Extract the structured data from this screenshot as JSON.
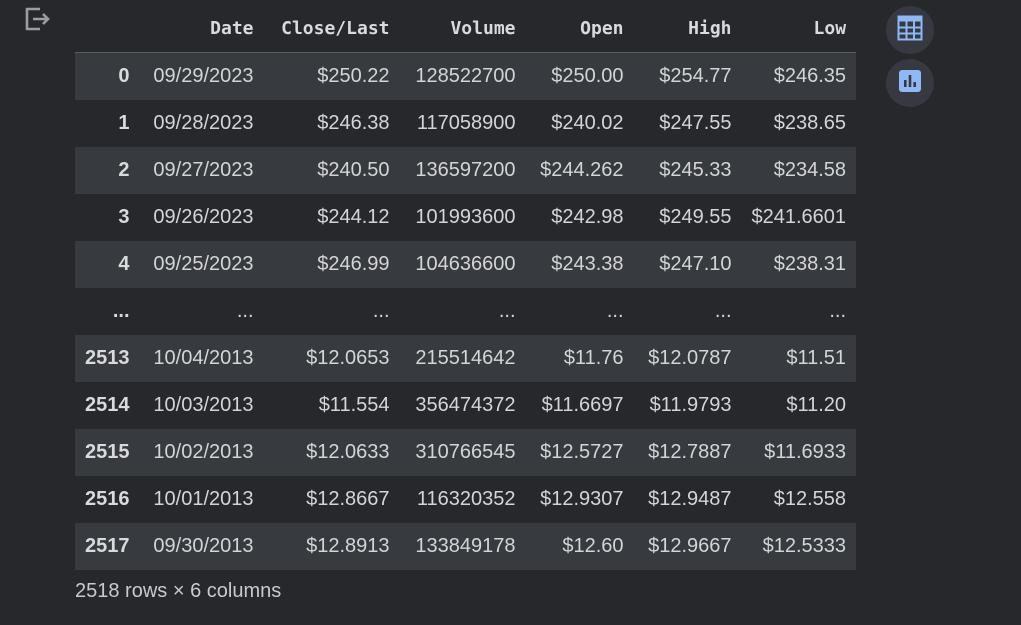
{
  "columns": [
    "Date",
    "Close/Last",
    "Volume",
    "Open",
    "High",
    "Low"
  ],
  "rows": [
    {
      "index": "0",
      "cells": [
        "09/29/2023",
        "$250.22",
        "128522700",
        "$250.00",
        "$254.77",
        "$246.35"
      ]
    },
    {
      "index": "1",
      "cells": [
        "09/28/2023",
        "$246.38",
        "117058900",
        "$240.02",
        "$247.55",
        "$238.65"
      ]
    },
    {
      "index": "2",
      "cells": [
        "09/27/2023",
        "$240.50",
        "136597200",
        "$244.262",
        "$245.33",
        "$234.58"
      ]
    },
    {
      "index": "3",
      "cells": [
        "09/26/2023",
        "$244.12",
        "101993600",
        "$242.98",
        "$249.55",
        "$241.6601"
      ]
    },
    {
      "index": "4",
      "cells": [
        "09/25/2023",
        "$246.99",
        "104636600",
        "$243.38",
        "$247.10",
        "$238.31"
      ]
    },
    {
      "index": "...",
      "cells": [
        "...",
        "...",
        "...",
        "...",
        "...",
        "..."
      ]
    },
    {
      "index": "2513",
      "cells": [
        "10/04/2013",
        "$12.0653",
        "215514642",
        "$11.76",
        "$12.0787",
        "$11.51"
      ]
    },
    {
      "index": "2514",
      "cells": [
        "10/03/2013",
        "$11.554",
        "356474372",
        "$11.6697",
        "$11.9793",
        "$11.20"
      ]
    },
    {
      "index": "2515",
      "cells": [
        "10/02/2013",
        "$12.0633",
        "310766545",
        "$12.5727",
        "$12.7887",
        "$11.6933"
      ]
    },
    {
      "index": "2516",
      "cells": [
        "10/01/2013",
        "$12.8667",
        "116320352",
        "$12.9307",
        "$12.9487",
        "$12.558"
      ]
    },
    {
      "index": "2517",
      "cells": [
        "09/30/2013",
        "$12.8913",
        "133849178",
        "$12.60",
        "$12.9667",
        "$12.5333"
      ]
    }
  ],
  "footer": {
    "shape_text": "2518 rows × 6 columns"
  },
  "icons": {
    "output": "output-exit-icon",
    "table_button": "table-grid-icon",
    "chart_button": "bar-chart-icon"
  },
  "colors": {
    "background": "#26282b",
    "stripe": "#373a3e",
    "button_bg": "#36393f",
    "icon_accent": "#8fb8f5"
  }
}
